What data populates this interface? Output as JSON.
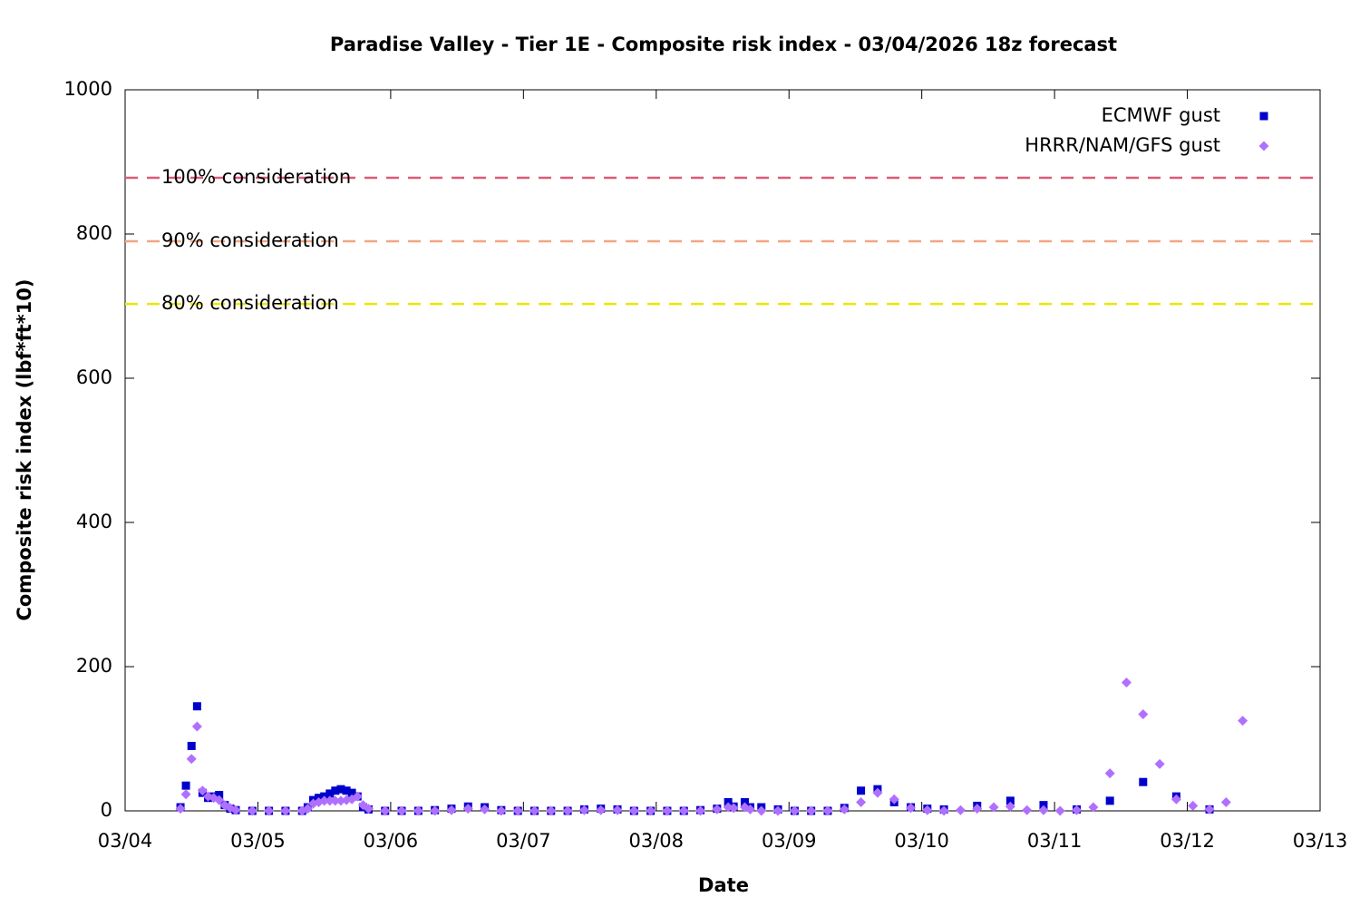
{
  "chart_data": {
    "type": "scatter",
    "title": "Paradise Valley - Tier 1E - Composite risk index - 03/04/2026 18z forecast",
    "x_label": "Date",
    "y_label": "Composite risk index (lbf*ft*10)",
    "xlim": [
      4,
      13
    ],
    "xticks": [
      {
        "value": 4,
        "label": "03/04"
      },
      {
        "value": 5,
        "label": "03/05"
      },
      {
        "value": 6,
        "label": "03/06"
      },
      {
        "value": 7,
        "label": "03/07"
      },
      {
        "value": 8,
        "label": "03/08"
      },
      {
        "value": 9,
        "label": "03/09"
      },
      {
        "value": 10,
        "label": "03/10"
      },
      {
        "value": 11,
        "label": "03/11"
      },
      {
        "value": 12,
        "label": "03/12"
      },
      {
        "value": 13,
        "label": "03/13"
      }
    ],
    "ylim": [
      0,
      1000
    ],
    "yticks": [
      0,
      200,
      400,
      600,
      800,
      1000
    ],
    "legend": "top right",
    "thresholds": [
      {
        "label": "100% consideration",
        "value": 878,
        "color": "#dc5a78"
      },
      {
        "label": "90% consideration",
        "value": 790,
        "color": "#f4a582"
      },
      {
        "label": "80% consideration",
        "value": 703,
        "color": "#e8e800"
      }
    ],
    "series": [
      {
        "name": "ECMWF gust",
        "color": "#0000cc",
        "marker": "square",
        "x": [
          4.417,
          4.458,
          4.5,
          4.542,
          4.583,
          4.625,
          4.667,
          4.708,
          4.75,
          4.792,
          4.833,
          4.958,
          5.083,
          5.208,
          5.333,
          5.375,
          5.417,
          5.458,
          5.5,
          5.542,
          5.583,
          5.625,
          5.667,
          5.708,
          5.75,
          5.792,
          5.833,
          5.958,
          6.083,
          6.208,
          6.333,
          6.458,
          6.583,
          6.708,
          6.833,
          6.958,
          7.083,
          7.208,
          7.333,
          7.458,
          7.583,
          7.708,
          7.833,
          7.958,
          8.083,
          8.208,
          8.333,
          8.458,
          8.542,
          8.583,
          8.667,
          8.708,
          8.792,
          8.917,
          9.042,
          9.167,
          9.292,
          9.417,
          9.542,
          9.667,
          9.792,
          9.917,
          10.042,
          10.167,
          10.417,
          10.667,
          10.917,
          11.167,
          11.417,
          11.667,
          11.917,
          12.167
        ],
        "values": [
          5,
          35,
          90,
          145,
          25,
          18,
          20,
          22,
          8,
          3,
          1,
          0,
          0,
          0,
          0,
          5,
          15,
          18,
          20,
          24,
          28,
          30,
          28,
          25,
          20,
          5,
          2,
          0,
          0,
          0,
          1,
          3,
          6,
          5,
          1,
          0,
          0,
          0,
          0,
          2,
          3,
          2,
          0,
          0,
          0,
          0,
          1,
          3,
          12,
          6,
          12,
          5,
          5,
          2,
          0,
          0,
          0,
          4,
          28,
          30,
          12,
          5,
          3,
          2,
          7,
          14,
          8,
          2,
          14,
          40,
          20,
          2
        ]
      },
      {
        "name": "HRRR/NAM/GFS gust",
        "color": "#b070ff",
        "marker": "diamond",
        "x": [
          4.417,
          4.458,
          4.5,
          4.542,
          4.583,
          4.625,
          4.667,
          4.708,
          4.75,
          4.792,
          4.833,
          4.958,
          5.083,
          5.208,
          5.333,
          5.375,
          5.417,
          5.458,
          5.5,
          5.542,
          5.583,
          5.625,
          5.667,
          5.708,
          5.75,
          5.792,
          5.833,
          5.958,
          6.083,
          6.208,
          6.333,
          6.458,
          6.583,
          6.708,
          6.833,
          6.958,
          7.083,
          7.208,
          7.333,
          7.458,
          7.583,
          7.708,
          7.833,
          7.958,
          8.083,
          8.208,
          8.333,
          8.458,
          8.542,
          8.583,
          8.667,
          8.708,
          8.792,
          8.917,
          9.042,
          9.167,
          9.292,
          9.417,
          9.542,
          9.667,
          9.792,
          9.917,
          10.042,
          10.167,
          10.292,
          10.417,
          10.542,
          10.667,
          10.792,
          10.917,
          11.042,
          11.167,
          11.292,
          11.417,
          11.542,
          11.667,
          11.792,
          11.917,
          12.042,
          12.167,
          12.292,
          12.417
        ],
        "values": [
          3,
          23,
          72,
          117,
          28,
          20,
          18,
          15,
          8,
          4,
          1,
          0,
          0,
          0,
          0,
          3,
          10,
          12,
          14,
          14,
          14,
          14,
          15,
          16,
          20,
          8,
          3,
          0,
          0,
          0,
          0,
          1,
          3,
          2,
          0,
          0,
          0,
          0,
          0,
          1,
          1,
          1,
          0,
          0,
          0,
          0,
          0,
          2,
          5,
          4,
          5,
          2,
          0,
          0,
          0,
          0,
          0,
          2,
          12,
          25,
          16,
          4,
          1,
          0,
          1,
          3,
          5,
          6,
          1,
          1,
          0,
          1,
          5,
          52,
          178,
          134,
          65,
          16,
          7,
          2,
          12,
          125
        ]
      }
    ]
  }
}
